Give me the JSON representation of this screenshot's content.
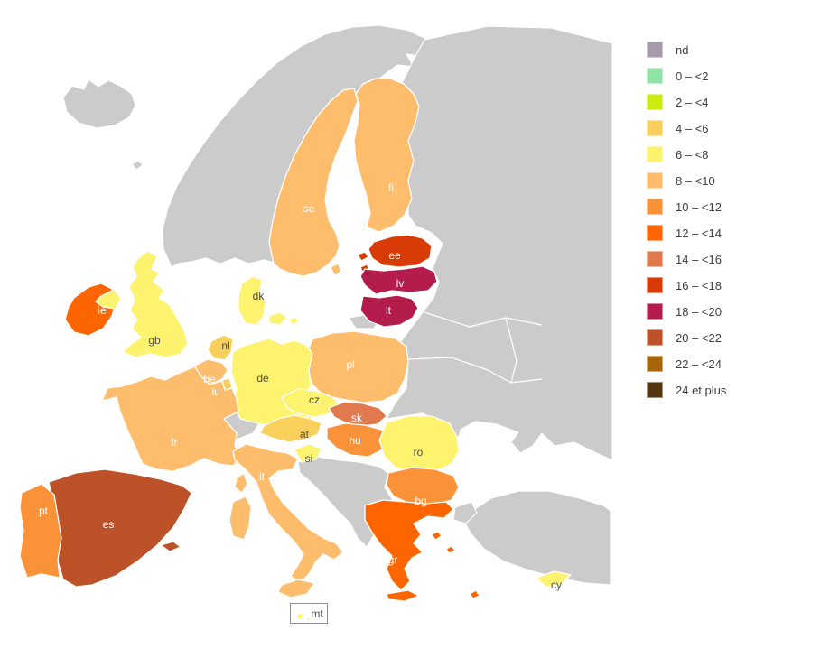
{
  "legend": {
    "items": [
      {
        "label": "nd",
        "color": "#a79aad"
      },
      {
        "label": "0 – <2",
        "color": "#90e2a5"
      },
      {
        "label": "2 – <4",
        "color": "#cdeb10"
      },
      {
        "label": "4 – <6",
        "color": "#f9d05c"
      },
      {
        "label": "6 – <8",
        "color": "#fdf36e"
      },
      {
        "label": "8 – <10",
        "color": "#fdbd6d"
      },
      {
        "label": "10 – <12",
        "color": "#fa9239"
      },
      {
        "label": "12 – <14",
        "color": "#fd6500"
      },
      {
        "label": "14 – <16",
        "color": "#e1794f"
      },
      {
        "label": "16 – <18",
        "color": "#d93b06"
      },
      {
        "label": "18 – <20",
        "color": "#b41c4c"
      },
      {
        "label": "20 – <22",
        "color": "#bd5228"
      },
      {
        "label": "22 – <24",
        "color": "#a6660b"
      },
      {
        "label": "24 et plus",
        "color": "#54360e"
      }
    ]
  },
  "map": {
    "sea_color": "#ffffff",
    "non_eu_color": "#cbcbcb",
    "border_color": "#ffffff",
    "countries": [
      {
        "id": "se",
        "label": "se",
        "category": "8 – <10",
        "color": "#fdbd6d",
        "label_color": "#ffffff"
      },
      {
        "id": "fi",
        "label": "fi",
        "category": "8 – <10",
        "color": "#fdbd6d",
        "label_color": "#ffffff"
      },
      {
        "id": "ee",
        "label": "ee",
        "category": "16 – <18",
        "color": "#d93b06",
        "label_color": "#ffffff"
      },
      {
        "id": "lv",
        "label": "lv",
        "category": "18 – <20",
        "color": "#b41c4c",
        "label_color": "#ffffff"
      },
      {
        "id": "lt",
        "label": "lt",
        "category": "18 – <20",
        "color": "#b41c4c",
        "label_color": "#ffffff"
      },
      {
        "id": "dk",
        "label": "dk",
        "category": "6 – <8",
        "color": "#fdf36e",
        "label_color": "#4d4d4d"
      },
      {
        "id": "ie",
        "label": "ie",
        "category": "12 – <14",
        "color": "#fd6500",
        "label_color": "#ffffff"
      },
      {
        "id": "gb",
        "label": "gb",
        "category": "6 – <8",
        "color": "#fdf36e",
        "label_color": "#4d4d4d"
      },
      {
        "id": "nl",
        "label": "nl",
        "category": "4 – <6",
        "color": "#f9d05c",
        "label_color": "#4d4d4d"
      },
      {
        "id": "be",
        "label": "be",
        "category": "8 – <10",
        "color": "#fdbd6d",
        "label_color": "#ffffff"
      },
      {
        "id": "lu",
        "label": "lu",
        "category": "4 – <6",
        "color": "#f9d05c",
        "label_color": "#ffffff"
      },
      {
        "id": "de",
        "label": "de",
        "category": "6 – <8",
        "color": "#fdf36e",
        "label_color": "#4d4d4d"
      },
      {
        "id": "fr",
        "label": "fr",
        "category": "8 – <10",
        "color": "#fdbd6d",
        "label_color": "#ffffff"
      },
      {
        "id": "pt",
        "label": "pt",
        "category": "10 – <12",
        "color": "#fa9239",
        "label_color": "#ffffff"
      },
      {
        "id": "es",
        "label": "es",
        "category": "20 – <22",
        "color": "#bd5228",
        "label_color": "#ffffff"
      },
      {
        "id": "it",
        "label": "it",
        "category": "8 – <10",
        "color": "#fdbd6d",
        "label_color": "#ffffff"
      },
      {
        "id": "at",
        "label": "at",
        "category": "4 – <6",
        "color": "#f9d05c",
        "label_color": "#4d4d4d"
      },
      {
        "id": "cz",
        "label": "cz",
        "category": "6 – <8",
        "color": "#fdf36e",
        "label_color": "#4d4d4d"
      },
      {
        "id": "sk",
        "label": "sk",
        "category": "14 – <16",
        "color": "#e1794f",
        "label_color": "#ffffff"
      },
      {
        "id": "hu",
        "label": "hu",
        "category": "10 – <12",
        "color": "#fa9239",
        "label_color": "#ffffff"
      },
      {
        "id": "si",
        "label": "si",
        "category": "6 – <8",
        "color": "#fdf36e",
        "label_color": "#4d4d4d"
      },
      {
        "id": "pl",
        "label": "pl",
        "category": "8 – <10",
        "color": "#fdbd6d",
        "label_color": "#ffffff"
      },
      {
        "id": "ro",
        "label": "ro",
        "category": "6 – <8",
        "color": "#fdf36e",
        "label_color": "#4d4d4d"
      },
      {
        "id": "bg",
        "label": "bg",
        "category": "10 – <12",
        "color": "#fa9239",
        "label_color": "#ffffff"
      },
      {
        "id": "gr",
        "label": "gr",
        "category": "12 – <14",
        "color": "#fd6500",
        "label_color": "#ffffff"
      },
      {
        "id": "cy",
        "label": "cy",
        "category": "6 – <8",
        "color": "#fdf36e",
        "label_color": "#4d4d4d"
      },
      {
        "id": "mt",
        "label": "mt",
        "category": "6 – <8",
        "color": "#fdf36e",
        "label_color": "#4d4d4d"
      }
    ]
  }
}
